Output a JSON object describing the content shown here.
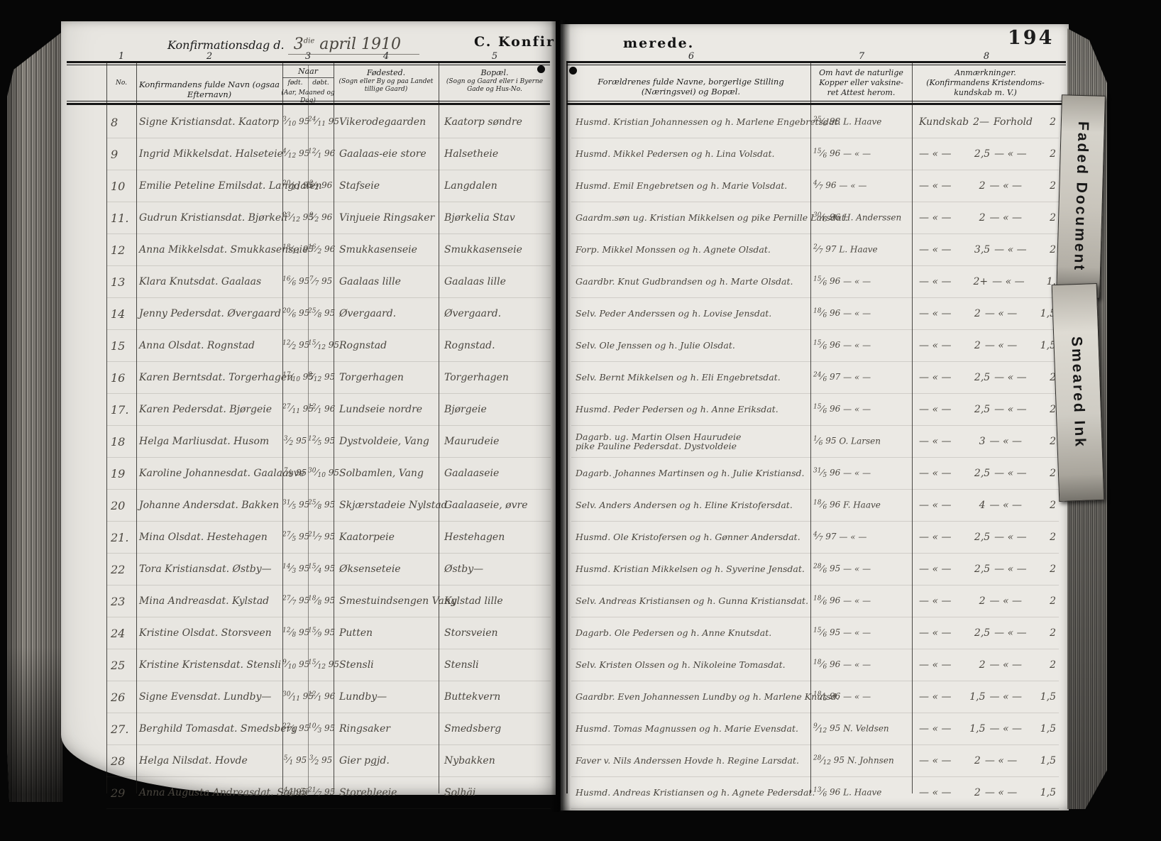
{
  "page": {
    "left_header": {
      "confirmation_day_label": "Konfirmationsdag d.",
      "date_day": "3",
      "date_suffix": "die",
      "date_rest": " april 1910",
      "section_title_left": "C. Konfir"
    },
    "right_header": {
      "section_title_right": "merede.",
      "page_number": "194"
    },
    "column_numbers": [
      "1",
      "2",
      "3",
      "4",
      "5",
      "6",
      "7",
      "8"
    ],
    "columns": {
      "no": "No.",
      "name": "Konfirmandens fulde Navn (ogsaa Efternavn)",
      "when": "Naar",
      "born": "født.",
      "baptized": "døbt.",
      "when_sub": "(Aar, Maaned og Dag)",
      "birthplace_1": "Fødested.",
      "birthplace_2": "(Sogn eller By og paa Landet",
      "birthplace_3": "tillige Gaard)",
      "residence_1": "Bopæl.",
      "residence_2": "(Sogn og Gaard eller i Byerne",
      "residence_3": "Gade og Hus-No.",
      "parents": "Forældrenes fulde Navne, borgerlige Stilling (Næringsvei) og Bopæl.",
      "vaccine_1": "Om havt de naturlige",
      "vaccine_2": "Kopper eller vaksine-",
      "vaccine_3": "ret   Attest herom.",
      "remarks_1": "Anmærkninger.",
      "remarks_2": "(Konfirmandens Kristendoms-",
      "remarks_3": "kundskab  m. V.)"
    },
    "remarks_labels": {
      "knowledge": "Kundskab",
      "conduct": "Forhold",
      "ditto": "— « —",
      "dash": "—"
    },
    "tabs": [
      {
        "label": "Faded Document"
      },
      {
        "label": "Smeared Ink"
      }
    ],
    "records": [
      {
        "no": "8",
        "name": "Signe Kristiansdat. Kaatorp",
        "born": "3/10 95",
        "baptized": "24/11 95",
        "birthplace": "Vikerodegaarden",
        "residence": "Kaatorp søndre",
        "parents": "Husmd. Kristian Johannessen og h. Marlene Engebretsdat.",
        "vaccinated": "25/6 98",
        "vaccinated_by": "L. Haave",
        "knowledge": "2",
        "conduct": "2",
        "first": true
      },
      {
        "no": "9",
        "name": "Ingrid Mikkelsdat. Halseteie",
        "born": "4/12 95",
        "baptized": "12/1 96",
        "birthplace": "Gaalaas-eie store",
        "residence": "Halsetheie",
        "parents": "Husmd. Mikkel Pedersen og h. Lina Volsdat.",
        "vaccinated": "15/6 96",
        "vaccinated_by": "— « —",
        "knowledge": "2,5",
        "conduct": "2"
      },
      {
        "no": "10",
        "name": "Emilie Peteline Emilsdat. Langdalen",
        "born": "20/11 95",
        "baptized": "2/2 96",
        "birthplace": "Stafseie",
        "residence": "Langdalen",
        "parents": "Husmd. Emil Engebretsen og h. Marie Volsdat.",
        "vaccinated": "4/7 96",
        "vaccinated_by": "— « —",
        "knowledge": "2",
        "conduct": "2"
      },
      {
        "no": "11.",
        "name": "Gudrun Kristiansdat. Bjørkeli",
        "born": "23/12 95",
        "baptized": "9/2 96",
        "birthplace": "Vinjueie Ringsaker",
        "residence": "Bjørkelia Stav",
        "parents": "Gaardm.søn ug. Kristian Mikkelsen og pike Pernille Larsdat.",
        "vaccinated": "30/6 96",
        "vaccinated_by": "H. Anderssen",
        "knowledge": "2",
        "conduct": "2"
      },
      {
        "no": "12",
        "name": "Anna Mikkelsdat. Smukkasenseie",
        "born": "18/11 95",
        "baptized": "16/2 96",
        "birthplace": "Smukkasenseie",
        "residence": "Smukkasenseie",
        "parents": "Forp. Mikkel Monssen og h. Agnete Olsdat.",
        "vaccinated": "2/7 97",
        "vaccinated_by": "L. Haave",
        "knowledge": "3,5",
        "conduct": "2"
      },
      {
        "no": "13",
        "name": "Klara Knutsdat. Gaalaas",
        "born": "16/6 95",
        "baptized": "7/7 95",
        "birthplace": "Gaalaas lille",
        "residence": "Gaalaas lille",
        "parents": "Gaardbr. Knut Gudbrandsen og h. Marte Olsdat.",
        "vaccinated": "15/6 96",
        "vaccinated_by": "— « —",
        "knowledge": "2+",
        "conduct": "1."
      },
      {
        "no": "14",
        "name": "Jenny Pedersdat. Øvergaard",
        "born": "20/6 95",
        "baptized": "25/8 95",
        "birthplace": "Øvergaard.",
        "residence": "Øvergaard.",
        "parents": "Selv. Peder Anderssen og h. Lovise Jensdat.",
        "vaccinated": "18/6 96",
        "vaccinated_by": "— « —",
        "knowledge": "2",
        "conduct": "1,5"
      },
      {
        "no": "15",
        "name": "Anna Olsdat. Rognstad",
        "born": "12/2 95",
        "baptized": "15/12 95",
        "birthplace": "Rognstad",
        "residence": "Rognstad.",
        "parents": "Selv. Ole Jenssen og h. Julie Olsdat.",
        "vaccinated": "15/6 96",
        "vaccinated_by": "— « —",
        "knowledge": "2",
        "conduct": "1,5"
      },
      {
        "no": "16",
        "name": "Karen Berntsdat. Torgerhagen",
        "born": "17/10 95",
        "baptized": "8/12 95",
        "birthplace": "Torgerhagen",
        "residence": "Torgerhagen",
        "parents": "Selv. Bernt Mikkelsen og h. Eli Engebretsdat.",
        "vaccinated": "24/6 97",
        "vaccinated_by": "— « —",
        "knowledge": "2,5",
        "conduct": "2"
      },
      {
        "no": "17.",
        "name": "Karen Pedersdat. Bjørgeie",
        "born": "27/11 95",
        "baptized": "12/1 96",
        "birthplace": "Lundseie nordre",
        "residence": "Bjørgeie",
        "parents": "Husmd. Peder Pedersen og h. Anne Eriksdat.",
        "vaccinated": "15/6 96",
        "vaccinated_by": "— « —",
        "knowledge": "2,5",
        "conduct": "2"
      },
      {
        "no": "18",
        "name": "Helga Marliusdat. Husom",
        "born": "3/2 95",
        "baptized": "12/5 95",
        "birthplace": "Dystvoldeie, Vang",
        "residence": "Maurudeie",
        "parents": [
          "Dagarb. ug. Martin Olsen Haurudeie",
          "pike Pauline Pedersdat. Dystvoldeie"
        ],
        "vaccinated": "1/6 95",
        "vaccinated_by": "O. Larsen",
        "knowledge": "3",
        "conduct": "2"
      },
      {
        "no": "19",
        "name": "Karoline Johannesdat. Gaalaasve",
        "born": "7/9 95",
        "baptized": "30/10 95",
        "birthplace": "Solbamlen, Vang",
        "residence": "Gaalaaseie",
        "parents": "Dagarb. Johannes Martinsen og h. Julie Kristiansd.",
        "vaccinated": "31/5 96",
        "vaccinated_by": "— « —",
        "knowledge": "2,5",
        "conduct": "2"
      },
      {
        "no": "20",
        "name": "Johanne Andersdat. Bakken",
        "born": "31/5 95",
        "baptized": "25/8 95",
        "birthplace": "Skjærstadeie Nylstad",
        "residence": "Gaalaaseie, øvre",
        "parents": "Selv. Anders Andersen og h. Eline Kristofersdat.",
        "vaccinated": "18/6 96",
        "vaccinated_by": "F. Haave",
        "knowledge": "4",
        "conduct": "2"
      },
      {
        "no": "21.",
        "name": "Mina Olsdat. Hestehagen",
        "born": "27/5 95",
        "baptized": "21/7 95",
        "birthplace": "Kaatorpeie",
        "residence": "Hestehagen",
        "parents": "Husmd. Ole Kristofersen og h. Gønner Andersdat.",
        "vaccinated": "4/7 97",
        "vaccinated_by": "— « —",
        "knowledge": "2,5",
        "conduct": "2"
      },
      {
        "no": "22",
        "name": "Tora Kristiansdat. Østby—",
        "born": "14/3 95",
        "baptized": "15/4 95",
        "birthplace": "Øksenseteie",
        "residence": "Østby—",
        "parents": "Husmd. Kristian Mikkelsen og h. Syverine Jensdat.",
        "vaccinated": "28/6 95",
        "vaccinated_by": "— « —",
        "knowledge": "2,5",
        "conduct": "2"
      },
      {
        "no": "23",
        "name": "Mina Andreasdat. Kylstad",
        "born": "27/7 95",
        "baptized": "18/8 95",
        "birthplace": "Smestuindsengen Vang",
        "residence": "Kylstad lille",
        "parents": "Selv. Andreas Kristiansen og h. Gunna Kristiansdat.",
        "vaccinated": "18/6 96",
        "vaccinated_by": "— « —",
        "knowledge": "2",
        "conduct": "2"
      },
      {
        "no": "24",
        "name": "Kristine Olsdat. Storsveen",
        "born": "12/8 95",
        "baptized": "15/9 95",
        "birthplace": "Putten",
        "residence": "Storsveien",
        "parents": "Dagarb. Ole Pedersen og h. Anne Knutsdat.",
        "vaccinated": "15/6 95",
        "vaccinated_by": "— « —",
        "knowledge": "2,5",
        "conduct": "2"
      },
      {
        "no": "25",
        "name": "Kristine Kristensdat. Stensli",
        "born": "9/10 95",
        "baptized": "15/12 95",
        "birthplace": "Stensli",
        "residence": "Stensli",
        "parents": "Selv. Kristen Olssen og h. Nikoleine Tomasdat.",
        "vaccinated": "18/6 96",
        "vaccinated_by": "— « —",
        "knowledge": "2",
        "conduct": "2"
      },
      {
        "no": "26",
        "name": "Signe Evensdat. Lundby—",
        "born": "30/11 95",
        "baptized": "12/1 96",
        "birthplace": "Lundby—",
        "residence": "Buttekvern",
        "parents": "Gaardbr. Even Johannessen Lundby og h. Marlene Knutsd.",
        "vaccinated": "18/6 96",
        "vaccinated_by": "— « —",
        "knowledge": "1,5",
        "conduct": "1,5"
      },
      {
        "no": "27.",
        "name": "Berghild Tomasdat. Smedsberg",
        "born": "22/1 95",
        "baptized": "10/3 95",
        "birthplace": "Ringsaker",
        "residence": "Smedsberg",
        "parents": "Husmd. Tomas Magnussen og h. Marie Evensdat.",
        "vaccinated": "9/12 95",
        "vaccinated_by": "N. Veldsen",
        "knowledge": "1,5",
        "conduct": "1,5"
      },
      {
        "no": "28",
        "name": "Helga Nilsdat. Hovde",
        "born": "5/1 95",
        "baptized": "3/2 95",
        "birthplace": "Gier pgjd.",
        "residence": "Nybakken",
        "parents": "Faver v. Nils Anderssen Hovde h. Regine Larsdat.",
        "vaccinated": "28/12 95",
        "vaccinated_by": "N. Johnsen",
        "knowledge": "2",
        "conduct": "1,5"
      },
      {
        "no": "29",
        "name": "Anna Augusta Andreasdat. Solhäi",
        "born": "4/6 95",
        "baptized": "21/7 95",
        "birthplace": "Storehleeie",
        "residence": "Solhäi",
        "parents": "Husmd. Andreas Kristiansen og h. Agnete Pedersdat.",
        "vaccinated": "13/6 96",
        "vaccinated_by": "L. Haave",
        "knowledge": "2",
        "conduct": "1,5"
      }
    ]
  }
}
